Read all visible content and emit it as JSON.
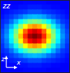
{
  "chart_data": {
    "type": "heatmap",
    "title": "zz",
    "x_label": "x",
    "y_label": "z",
    "xlim": [
      0,
      15
    ],
    "ylim": [
      0,
      15
    ],
    "xticks": [],
    "yticks": [],
    "tick_labels": false,
    "cells": [
      [
        0.12,
        0.12,
        0.12,
        0.12,
        0.12,
        0.13,
        0.13,
        0.13,
        0.13,
        0.13,
        0.12,
        0.12,
        0.12,
        0.12,
        0.12
      ],
      [
        0.12,
        0.12,
        0.13,
        0.13,
        0.14,
        0.14,
        0.15,
        0.15,
        0.15,
        0.14,
        0.14,
        0.13,
        0.13,
        0.12,
        0.12
      ],
      [
        0.13,
        0.14,
        0.15,
        0.16,
        0.17,
        0.18,
        0.2,
        0.2,
        0.2,
        0.18,
        0.17,
        0.16,
        0.15,
        0.14,
        0.13
      ],
      [
        0.14,
        0.16,
        0.18,
        0.21,
        0.24,
        0.28,
        0.3,
        0.31,
        0.3,
        0.28,
        0.24,
        0.21,
        0.18,
        0.16,
        0.14
      ],
      [
        0.16,
        0.18,
        0.23,
        0.3,
        0.37,
        0.43,
        0.48,
        0.5,
        0.48,
        0.43,
        0.37,
        0.3,
        0.23,
        0.18,
        0.16
      ],
      [
        0.17,
        0.23,
        0.3,
        0.4,
        0.51,
        0.62,
        0.7,
        0.73,
        0.7,
        0.62,
        0.51,
        0.4,
        0.3,
        0.23,
        0.17
      ],
      [
        0.19,
        0.25,
        0.36,
        0.49,
        0.63,
        0.78,
        0.88,
        0.92,
        0.88,
        0.78,
        0.63,
        0.49,
        0.36,
        0.25,
        0.19
      ],
      [
        0.2,
        0.27,
        0.38,
        0.52,
        0.68,
        0.84,
        0.96,
        1.0,
        0.96,
        0.84,
        0.68,
        0.52,
        0.38,
        0.27,
        0.2
      ],
      [
        0.19,
        0.25,
        0.36,
        0.49,
        0.63,
        0.78,
        0.88,
        0.92,
        0.88,
        0.78,
        0.63,
        0.49,
        0.36,
        0.25,
        0.19
      ],
      [
        0.17,
        0.23,
        0.3,
        0.4,
        0.51,
        0.62,
        0.7,
        0.73,
        0.7,
        0.62,
        0.51,
        0.4,
        0.3,
        0.23,
        0.17
      ],
      [
        0.16,
        0.18,
        0.23,
        0.3,
        0.37,
        0.43,
        0.48,
        0.5,
        0.48,
        0.43,
        0.37,
        0.3,
        0.23,
        0.18,
        0.16
      ],
      [
        0.14,
        0.16,
        0.18,
        0.21,
        0.24,
        0.28,
        0.3,
        0.31,
        0.3,
        0.28,
        0.24,
        0.21,
        0.18,
        0.16,
        0.14
      ],
      [
        0.13,
        0.14,
        0.15,
        0.16,
        0.17,
        0.18,
        0.2,
        0.2,
        0.2,
        0.18,
        0.17,
        0.16,
        0.15,
        0.14,
        0.13
      ],
      [
        0.12,
        0.12,
        0.13,
        0.13,
        0.14,
        0.14,
        0.15,
        0.15,
        0.15,
        0.14,
        0.14,
        0.13,
        0.13,
        0.12,
        0.12
      ],
      [
        0.12,
        0.12,
        0.12,
        0.12,
        0.12,
        0.13,
        0.13,
        0.13,
        0.13,
        0.13,
        0.12,
        0.12,
        0.12,
        0.12,
        0.12
      ]
    ]
  }
}
